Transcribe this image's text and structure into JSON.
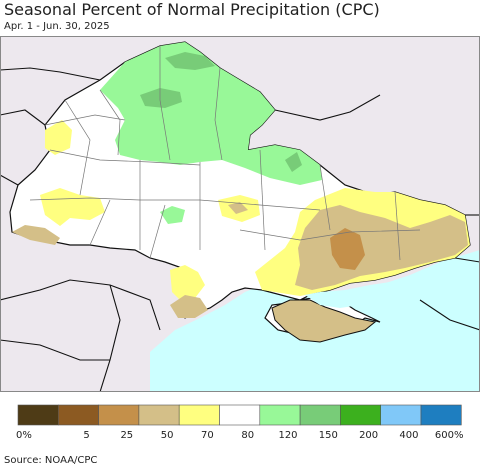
{
  "title": "Seasonal Percent of Normal Precipitation (CPC)",
  "subtitle": "Apr. 1 - Jun. 30, 2025",
  "source": "Source: NOAA/CPC",
  "map": {
    "region": "Ukraine",
    "sea_color": "#ccffff",
    "land_outside_color": "#ede8ee",
    "border_color": "#111111"
  },
  "legend": {
    "bins": [
      {
        "color": "#4e3b16"
      },
      {
        "color": "#8c5a22"
      },
      {
        "color": "#c4904a"
      },
      {
        "color": "#d4bf88"
      },
      {
        "color": "#ffff80"
      },
      {
        "color": "#ffffff"
      },
      {
        "color": "#98f898"
      },
      {
        "color": "#78cc78"
      },
      {
        "color": "#3cb01e"
      },
      {
        "color": "#80c8f8"
      },
      {
        "color": "#1e7ec0"
      }
    ],
    "labels": [
      "0%",
      "5",
      "25",
      "50",
      "70",
      "80",
      "120",
      "150",
      "200",
      "400",
      "600%"
    ]
  }
}
